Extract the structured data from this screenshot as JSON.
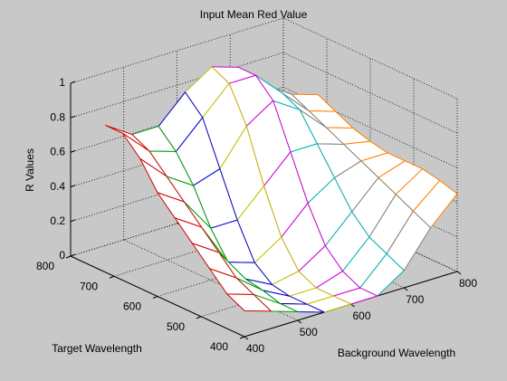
{
  "chart_data": {
    "type": "mesh",
    "title": "Input Mean Red Value",
    "xlabel": "Background Wavelength",
    "ylabel": "Target Wavelength",
    "zlabel": "R Values",
    "xlim": [
      400,
      800
    ],
    "xticks": [
      400,
      500,
      600,
      700,
      800
    ],
    "ylim": [
      400,
      800
    ],
    "yticks": [
      400,
      500,
      600,
      700,
      800
    ],
    "zlim": [
      0,
      1
    ],
    "zticks": [
      0,
      0.2,
      0.4,
      0.6,
      0.8,
      1
    ],
    "grid": true,
    "x": [
      400,
      450,
      500,
      550,
      600,
      650,
      700,
      750,
      800
    ],
    "y": [
      400,
      440,
      480,
      520,
      560,
      600,
      640,
      680,
      720
    ],
    "z": [
      [
        0.15,
        0.1,
        0.05,
        0,
        0,
        0,
        0.1,
        0.3,
        0.45
      ],
      [
        0.2,
        0.15,
        0.05,
        0,
        0,
        0,
        0.15,
        0.35,
        0.48
      ],
      [
        0.3,
        0.2,
        0.08,
        0,
        0,
        0.05,
        0.2,
        0.4,
        0.5
      ],
      [
        0.4,
        0.3,
        0.1,
        0.02,
        0.05,
        0.15,
        0.3,
        0.45,
        0.5
      ],
      [
        0.5,
        0.4,
        0.15,
        0.1,
        0.2,
        0.35,
        0.45,
        0.5,
        0.5
      ],
      [
        0.6,
        0.5,
        0.3,
        0.3,
        0.45,
        0.6,
        0.6,
        0.55,
        0.52
      ],
      [
        0.75,
        0.6,
        0.5,
        0.55,
        0.75,
        0.85,
        0.75,
        0.6,
        0.55
      ],
      [
        0.85,
        0.7,
        0.65,
        0.8,
        0.95,
        0.95,
        0.8,
        0.65,
        0.6
      ],
      [
        0.85,
        0.75,
        0.75,
        0.9,
        1.0,
        0.95,
        0.8,
        0.7,
        0.65
      ]
    ],
    "line_colors": [
      "#d00000",
      "#00a000",
      "#0000d0",
      "#c0c000",
      "#d000d0",
      "#00b0b0",
      "#808080",
      "#ff8000",
      "#8000ff"
    ],
    "face_color": "#ffffff"
  }
}
